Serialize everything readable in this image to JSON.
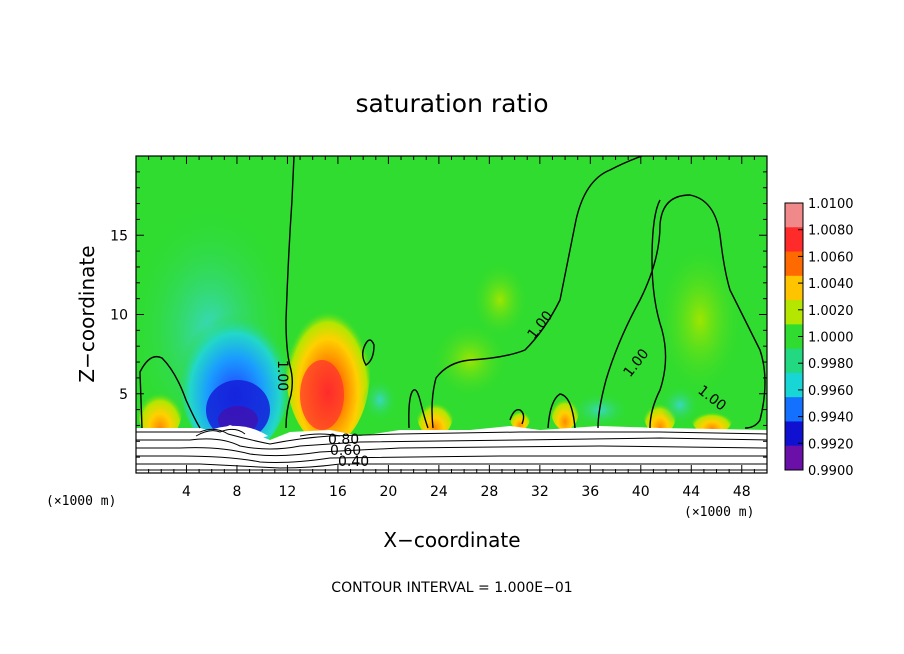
{
  "chart_data": {
    "type": "heatmap",
    "title": "saturation ratio",
    "xlabel": "X−coordinate",
    "ylabel": "Z−coordinate",
    "x_unit_left": "(×1000 m)",
    "x_unit_right": "(×1000 m)",
    "xlim": [
      0,
      50
    ],
    "ylim": [
      0,
      20
    ],
    "xticks": [
      4,
      8,
      12,
      16,
      20,
      24,
      28,
      32,
      36,
      40,
      44,
      48
    ],
    "yticks": [
      5,
      10,
      15
    ],
    "colorbar": {
      "levels": [
        "1.0100",
        "1.0080",
        "1.0060",
        "1.0040",
        "1.0020",
        "1.0000",
        "0.9980",
        "0.9960",
        "0.9940",
        "0.9920",
        "0.9900"
      ],
      "colors": [
        "#f08a8a",
        "#ff2a2a",
        "#ff6a00",
        "#ffc400",
        "#b4e600",
        "#2fdc2f",
        "#22d880",
        "#18d6d6",
        "#1470ff",
        "#1010d0",
        "#6a0fa8"
      ]
    },
    "contour_labels": [
      "1.00",
      "1.00",
      "1.00",
      "1.00",
      "0.80",
      "0.60",
      "0.40"
    ],
    "footer": "CONTOUR INTERVAL = 1.000E−01"
  }
}
